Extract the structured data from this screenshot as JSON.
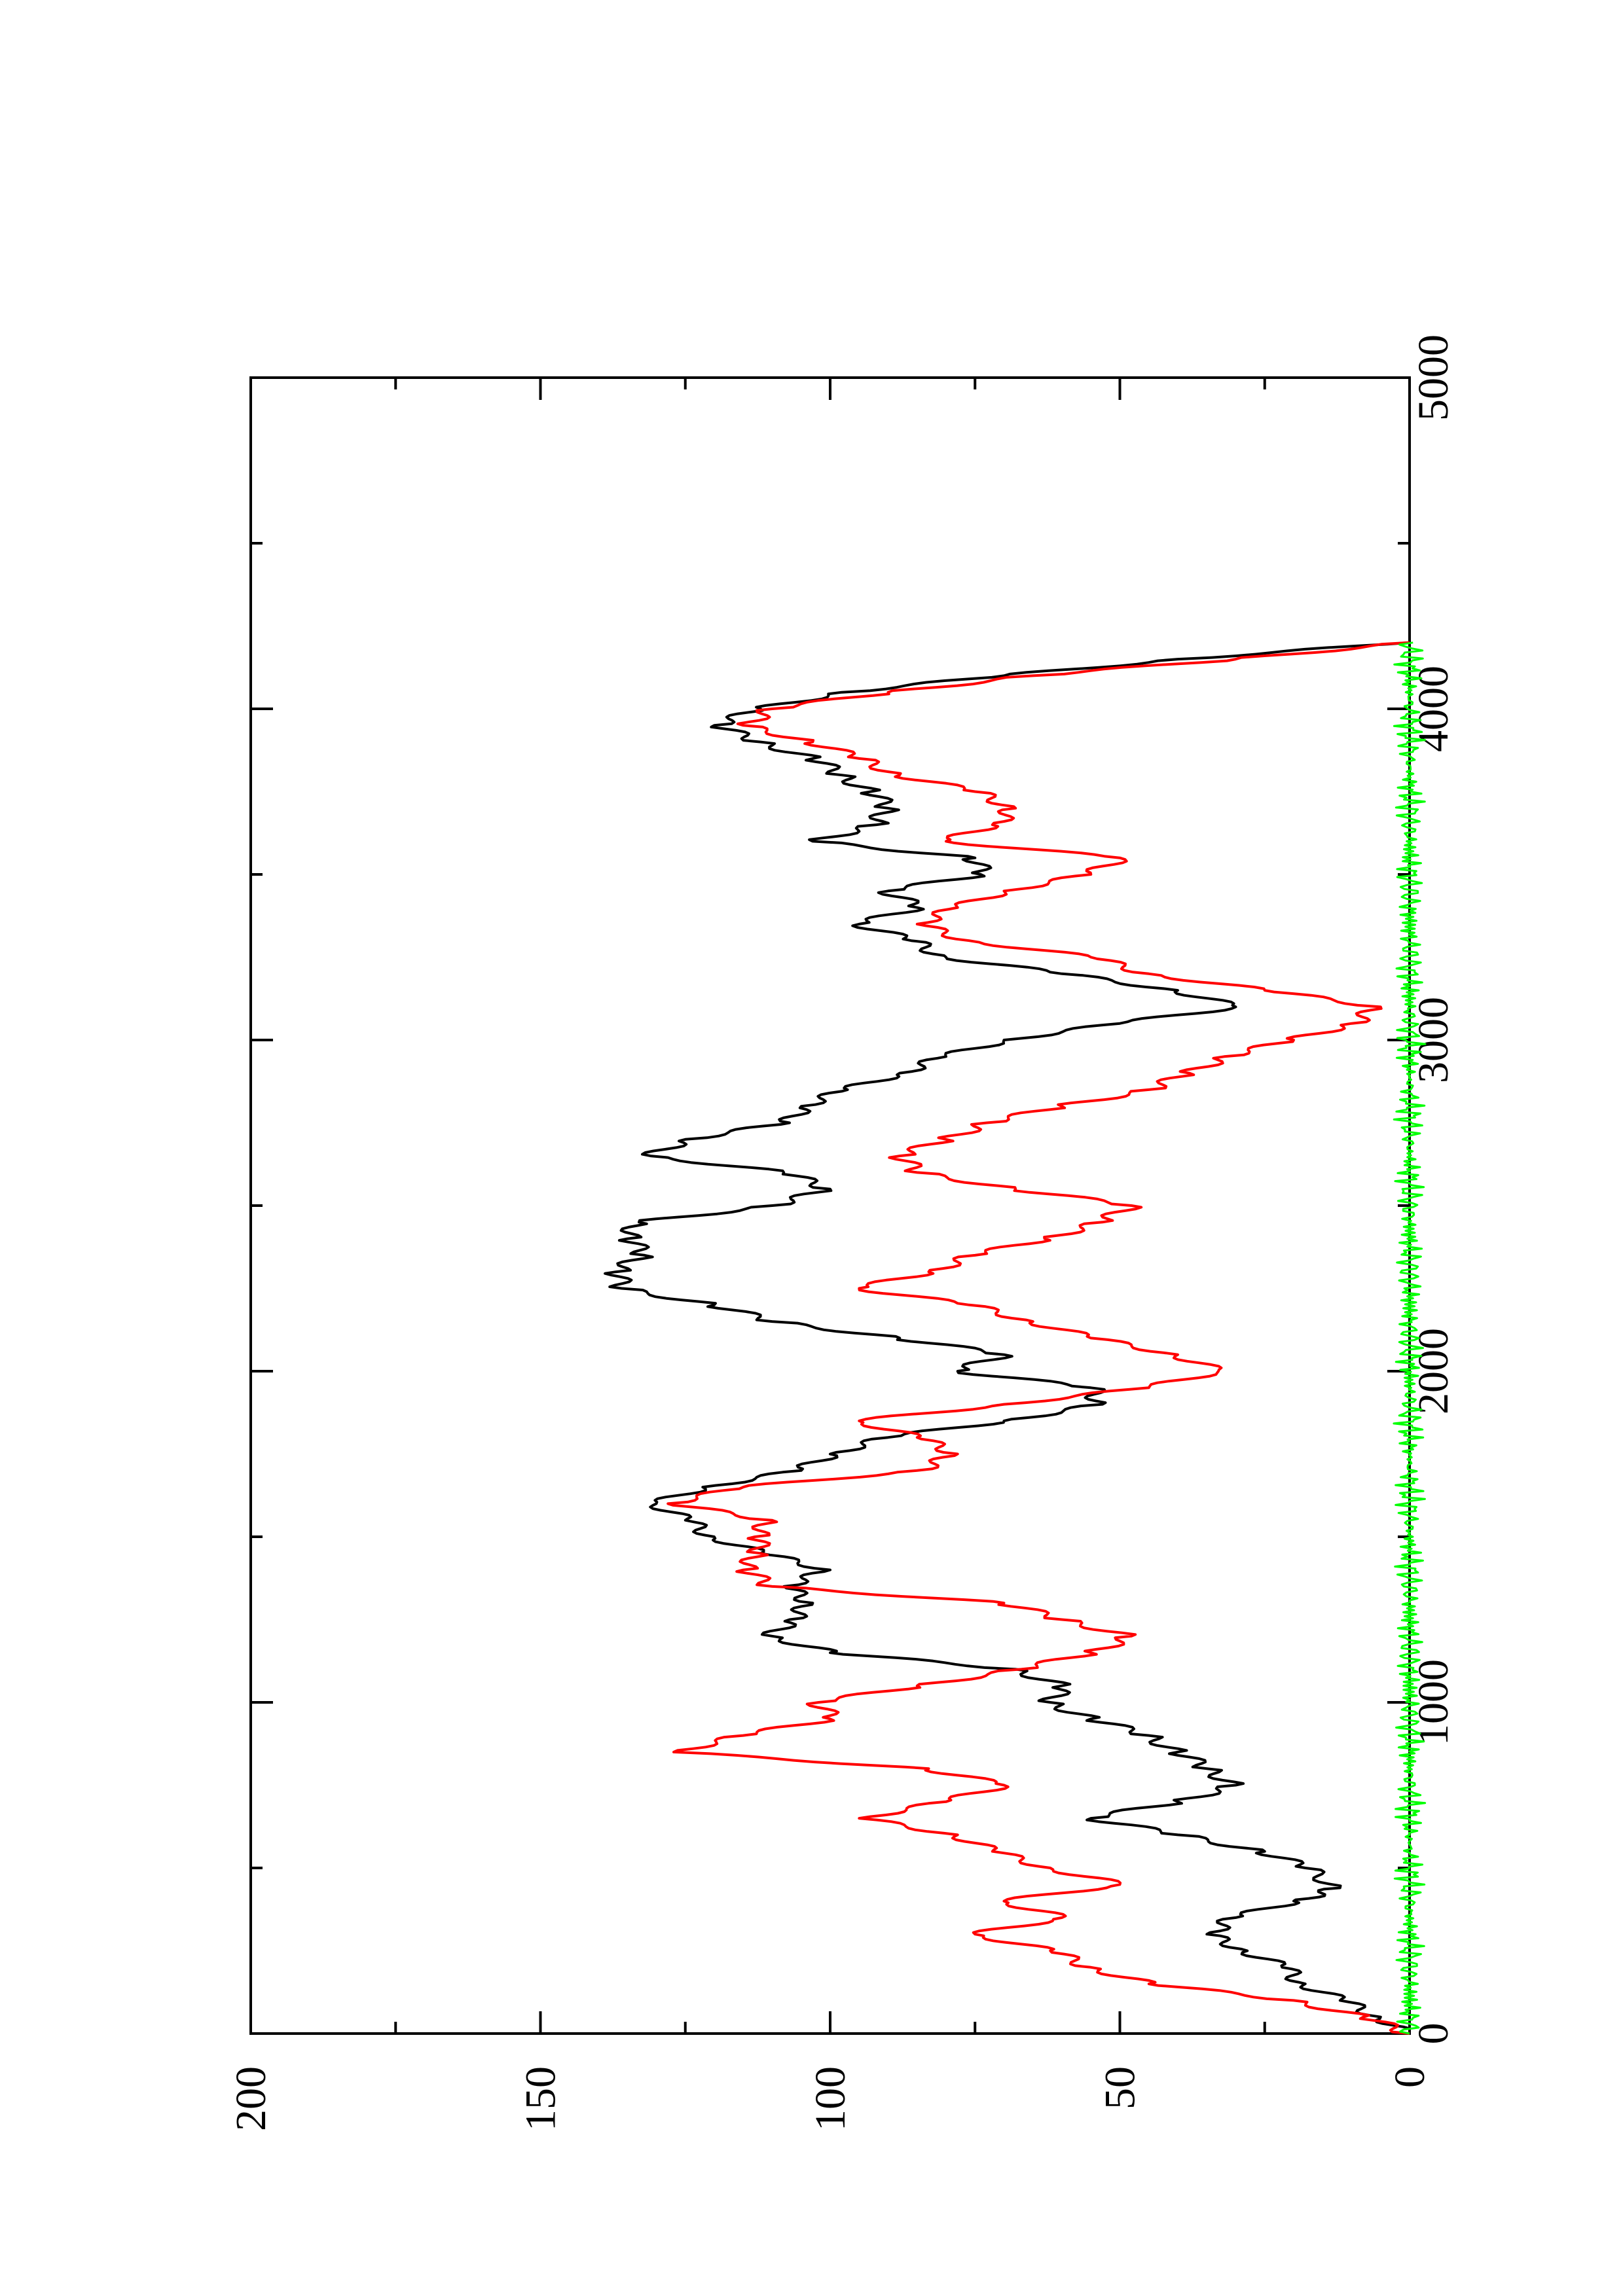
{
  "chart_data": {
    "type": "line",
    "orientation": "rotated-90-counterclockwise",
    "title": "",
    "xlabel": "",
    "ylabel": "",
    "xlim": [
      0,
      5000
    ],
    "ylim": [
      0,
      200
    ],
    "x_major_ticks": [
      0,
      1000,
      2000,
      3000,
      4000,
      5000
    ],
    "x_minor_ticks": [
      500,
      1500,
      2500,
      3500,
      4500
    ],
    "y_major_ticks": [
      0,
      50,
      100,
      150,
      200
    ],
    "y_minor_ticks": [
      25,
      75,
      125,
      175
    ],
    "x_tick_labels": [
      "0",
      "1000",
      "2000",
      "3000",
      "4000",
      "5000"
    ],
    "y_tick_labels": [
      "0",
      "50",
      "100",
      "150",
      "200"
    ],
    "grid": false,
    "legend": "none",
    "series": [
      {
        "color": "#000000",
        "points": [
          [
            0,
            0
          ],
          [
            50,
            5
          ],
          [
            100,
            12
          ],
          [
            150,
            18
          ],
          [
            200,
            22
          ],
          [
            250,
            28
          ],
          [
            300,
            35
          ],
          [
            350,
            30
          ],
          [
            400,
            20
          ],
          [
            440,
            12
          ],
          [
            500,
            18
          ],
          [
            550,
            25
          ],
          [
            600,
            40
          ],
          [
            650,
            55
          ],
          [
            700,
            40
          ],
          [
            750,
            30
          ],
          [
            800,
            35
          ],
          [
            850,
            40
          ],
          [
            900,
            45
          ],
          [
            950,
            55
          ],
          [
            1000,
            62
          ],
          [
            1050,
            60
          ],
          [
            1100,
            68
          ],
          [
            1150,
            100
          ],
          [
            1200,
            110
          ],
          [
            1250,
            107
          ],
          [
            1300,
            103
          ],
          [
            1350,
            108
          ],
          [
            1400,
            100
          ],
          [
            1450,
            112
          ],
          [
            1500,
            120
          ],
          [
            1550,
            125
          ],
          [
            1600,
            130
          ],
          [
            1650,
            122
          ],
          [
            1700,
            105
          ],
          [
            1750,
            100
          ],
          [
            1800,
            90
          ],
          [
            1850,
            70
          ],
          [
            1900,
            53
          ],
          [
            1950,
            55
          ],
          [
            2000,
            78
          ],
          [
            2050,
            70
          ],
          [
            2100,
            88
          ],
          [
            2150,
            110
          ],
          [
            2200,
            120
          ],
          [
            2250,
            136
          ],
          [
            2300,
            137
          ],
          [
            2350,
            132
          ],
          [
            2400,
            135
          ],
          [
            2450,
            133
          ],
          [
            2500,
            110
          ],
          [
            2550,
            100
          ],
          [
            2600,
            108
          ],
          [
            2650,
            131
          ],
          [
            2700,
            125
          ],
          [
            2750,
            107
          ],
          [
            2800,
            105
          ],
          [
            2850,
            97
          ],
          [
            2900,
            88
          ],
          [
            2950,
            80
          ],
          [
            3000,
            70
          ],
          [
            3050,
            50
          ],
          [
            3100,
            30
          ],
          [
            3150,
            40
          ],
          [
            3200,
            60
          ],
          [
            3250,
            80
          ],
          [
            3300,
            86
          ],
          [
            3350,
            95
          ],
          [
            3400,
            85
          ],
          [
            3450,
            90
          ],
          [
            3500,
            74
          ],
          [
            3550,
            75
          ],
          [
            3600,
            103
          ],
          [
            3650,
            92
          ],
          [
            3700,
            90
          ],
          [
            3750,
            93
          ],
          [
            3800,
            98
          ],
          [
            3850,
            103
          ],
          [
            3900,
            112
          ],
          [
            3950,
            120
          ],
          [
            4000,
            112
          ],
          [
            4050,
            98
          ],
          [
            4100,
            70
          ],
          [
            4150,
            40
          ],
          [
            4200,
            0
          ]
        ]
      },
      {
        "color": "#ff0000",
        "points": [
          [
            0,
            0
          ],
          [
            50,
            8
          ],
          [
            100,
            20
          ],
          [
            150,
            45
          ],
          [
            200,
            55
          ],
          [
            250,
            62
          ],
          [
            300,
            75
          ],
          [
            350,
            60
          ],
          [
            400,
            70
          ],
          [
            450,
            50
          ],
          [
            500,
            62
          ],
          [
            550,
            72
          ],
          [
            600,
            78
          ],
          [
            650,
            95
          ],
          [
            700,
            80
          ],
          [
            750,
            70
          ],
          [
            800,
            83
          ],
          [
            850,
            127
          ],
          [
            900,
            115
          ],
          [
            950,
            100
          ],
          [
            1000,
            102
          ],
          [
            1050,
            85
          ],
          [
            1100,
            67
          ],
          [
            1150,
            55
          ],
          [
            1200,
            48
          ],
          [
            1250,
            60
          ],
          [
            1300,
            70
          ],
          [
            1350,
            110
          ],
          [
            1400,
            115
          ],
          [
            1450,
            112
          ],
          [
            1500,
            113
          ],
          [
            1550,
            110
          ],
          [
            1600,
            128
          ],
          [
            1650,
            115
          ],
          [
            1700,
            85
          ],
          [
            1750,
            78
          ],
          [
            1800,
            85
          ],
          [
            1850,
            95
          ],
          [
            1900,
            70
          ],
          [
            1950,
            45
          ],
          [
            2000,
            33
          ],
          [
            2050,
            40
          ],
          [
            2100,
            55
          ],
          [
            2150,
            65
          ],
          [
            2200,
            76
          ],
          [
            2250,
            95
          ],
          [
            2300,
            83
          ],
          [
            2350,
            75
          ],
          [
            2400,
            63
          ],
          [
            2450,
            53
          ],
          [
            2500,
            48
          ],
          [
            2550,
            68
          ],
          [
            2600,
            85
          ],
          [
            2650,
            88
          ],
          [
            2700,
            80
          ],
          [
            2750,
            73
          ],
          [
            2800,
            60
          ],
          [
            2850,
            45
          ],
          [
            2900,
            38
          ],
          [
            2950,
            32
          ],
          [
            3000,
            20
          ],
          [
            3050,
            10
          ],
          [
            3100,
            5
          ],
          [
            3150,
            25
          ],
          [
            3200,
            45
          ],
          [
            3250,
            55
          ],
          [
            3300,
            76
          ],
          [
            3350,
            85
          ],
          [
            3400,
            78
          ],
          [
            3450,
            70
          ],
          [
            3500,
            55
          ],
          [
            3550,
            50
          ],
          [
            3600,
            80
          ],
          [
            3650,
            72
          ],
          [
            3700,
            68
          ],
          [
            3750,
            75
          ],
          [
            3800,
            88
          ],
          [
            3850,
            95
          ],
          [
            3900,
            103
          ],
          [
            3950,
            115
          ],
          [
            4000,
            110
          ],
          [
            4050,
            90
          ],
          [
            4100,
            65
          ],
          [
            4150,
            30
          ],
          [
            4200,
            0
          ]
        ]
      },
      {
        "color": "#00ff00",
        "style": "noise-near-zero",
        "x_range": [
          0,
          4200
        ],
        "amplitude": 2
      }
    ]
  }
}
